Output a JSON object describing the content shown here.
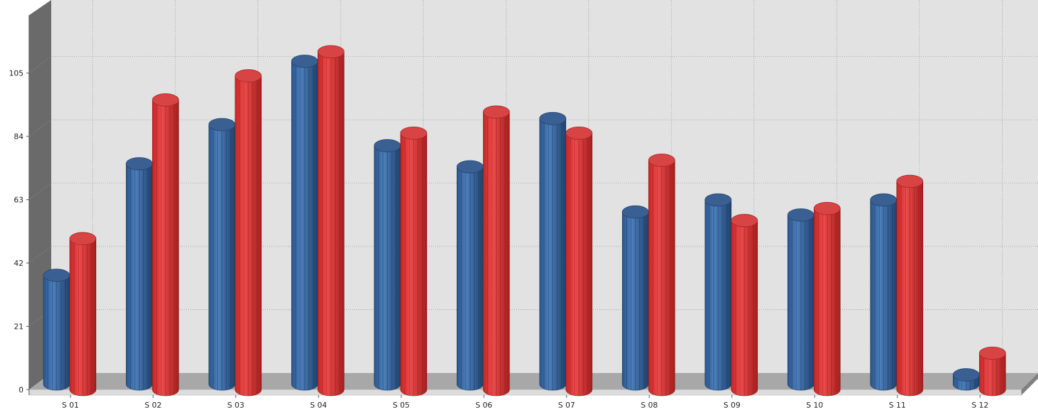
{
  "chart_data": {
    "type": "bar",
    "title": "",
    "xlabel": "",
    "ylabel": "",
    "categories": [
      "S 01",
      "S 02",
      "S 03",
      "S 04",
      "S 05",
      "S 06",
      "S 07",
      "S 08",
      "S 09",
      "S 10",
      "S 11",
      "S 12"
    ],
    "series": [
      {
        "color": "#3e6fa8",
        "values": [
          37,
          74,
          87,
          108,
          80,
          73,
          89,
          58,
          62,
          57,
          62,
          4
        ]
      },
      {
        "color": "#d63b3b",
        "values": [
          51,
          97,
          105,
          113,
          86,
          93,
          86,
          77,
          57,
          61,
          70,
          13
        ]
      }
    ],
    "ylim": [
      0,
      115
    ],
    "yticks": [
      "0",
      "21",
      "42",
      "63",
      "84",
      "105"
    ],
    "grid": true,
    "legend": "none",
    "style": "3d-cylinder"
  }
}
